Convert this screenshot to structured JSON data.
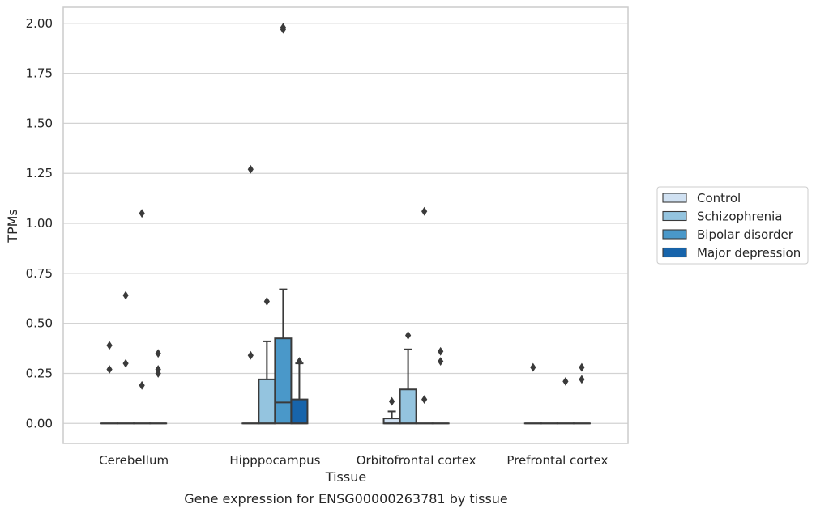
{
  "chart_data": {
    "type": "box",
    "caption": "Gene expression for ENSG00000263781 by tissue",
    "xlabel": "Tissue",
    "ylabel": "TPMs",
    "ylim": [
      -0.1,
      2.08
    ],
    "yticks": [
      "0.00",
      "0.25",
      "0.50",
      "0.75",
      "1.00",
      "1.25",
      "1.50",
      "1.75",
      "2.00"
    ],
    "grid": "horizontal",
    "legend_position": "right",
    "categories": [
      "Cerebellum",
      "Hipppocampus",
      "Orbitofrontal cortex",
      "Prefrontal cortex"
    ],
    "series": [
      {
        "name": "Control",
        "color": "#d0e1f2",
        "boxes": [
          {
            "q1": 0,
            "median": 0,
            "q3": 0,
            "whisker_low": 0,
            "whisker_high": 0,
            "outliers": [
              0.27,
              0.39
            ]
          },
          {
            "q1": 0,
            "median": 0,
            "q3": 0,
            "whisker_low": 0,
            "whisker_high": 0,
            "outliers": [
              0.34,
              1.27
            ]
          },
          {
            "q1": 0,
            "median": 0,
            "q3": 0.025,
            "whisker_low": 0,
            "whisker_high": 0.06,
            "outliers": [
              0.11
            ]
          },
          {
            "q1": 0,
            "median": 0,
            "q3": 0,
            "whisker_low": 0,
            "whisker_high": 0,
            "outliers": [
              0.28
            ]
          }
        ]
      },
      {
        "name": "Schizophrenia",
        "color": "#94c4df",
        "boxes": [
          {
            "q1": 0,
            "median": 0,
            "q3": 0,
            "whisker_low": 0,
            "whisker_high": 0,
            "outliers": [
              0.3,
              0.64
            ]
          },
          {
            "q1": 0,
            "median": 0,
            "q3": 0.22,
            "whisker_low": 0,
            "whisker_high": 0.41,
            "outliers": [
              0.61
            ]
          },
          {
            "q1": 0,
            "median": 0,
            "q3": 0.17,
            "whisker_low": 0,
            "whisker_high": 0.37,
            "outliers": [
              0.44
            ]
          },
          {
            "q1": 0,
            "median": 0,
            "q3": 0,
            "whisker_low": 0,
            "whisker_high": 0,
            "outliers": []
          }
        ]
      },
      {
        "name": "Bipolar disorder",
        "color": "#4a98c9",
        "boxes": [
          {
            "q1": 0,
            "median": 0,
            "q3": 0,
            "whisker_low": 0,
            "whisker_high": 0,
            "outliers": [
              0.19,
              1.05
            ]
          },
          {
            "q1": 0,
            "median": 0.105,
            "q3": 0.425,
            "whisker_low": 0,
            "whisker_high": 0.67,
            "outliers": [
              1.97,
              1.98
            ]
          },
          {
            "q1": 0,
            "median": 0,
            "q3": 0,
            "whisker_low": 0,
            "whisker_high": 0,
            "outliers": [
              0.12,
              1.06
            ]
          },
          {
            "q1": 0,
            "median": 0,
            "q3": 0,
            "whisker_low": 0,
            "whisker_high": 0,
            "outliers": [
              0.21
            ]
          }
        ]
      },
      {
        "name": "Major depression",
        "color": "#1764ab",
        "boxes": [
          {
            "q1": 0,
            "median": 0,
            "q3": 0,
            "whisker_low": 0,
            "whisker_high": 0,
            "outliers": [
              0.25,
              0.27,
              0.35
            ]
          },
          {
            "q1": 0,
            "median": 0,
            "q3": 0.12,
            "whisker_low": 0,
            "whisker_high": 0.3,
            "outliers": [
              0.31
            ]
          },
          {
            "q1": 0,
            "median": 0,
            "q3": 0,
            "whisker_low": 0,
            "whisker_high": 0,
            "outliers": [
              0.31,
              0.36
            ]
          },
          {
            "q1": 0,
            "median": 0,
            "q3": 0,
            "whisker_low": 0,
            "whisker_high": 0,
            "outliers": [
              0.22,
              0.28
            ]
          }
        ]
      }
    ]
  }
}
